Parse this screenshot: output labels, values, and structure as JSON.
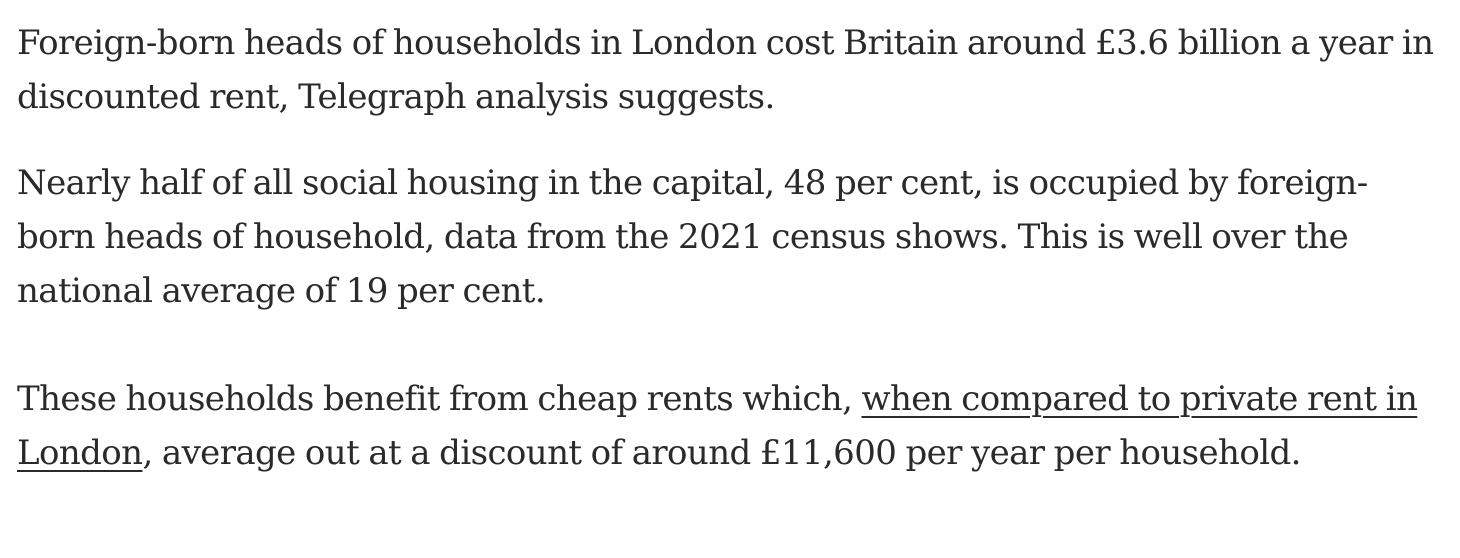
{
  "article": {
    "paragraph_1": "Foreign-born heads of households in London cost Britain around £3.6 billion a year in discounted rent, Telegraph analysis suggests.",
    "paragraph_2": "Nearly half of all social housing in the capital, 48 per cent, is occupied by foreign-born heads of household, data from the 2021 census shows. This is well over the national average of 19 per cent.",
    "paragraph_3": {
      "before_link": "These households benefit from cheap rents which, ",
      "link_text": "when compared to private rent in London",
      "after_link": ", average out at a discount of around £11,600 per year per household."
    }
  }
}
